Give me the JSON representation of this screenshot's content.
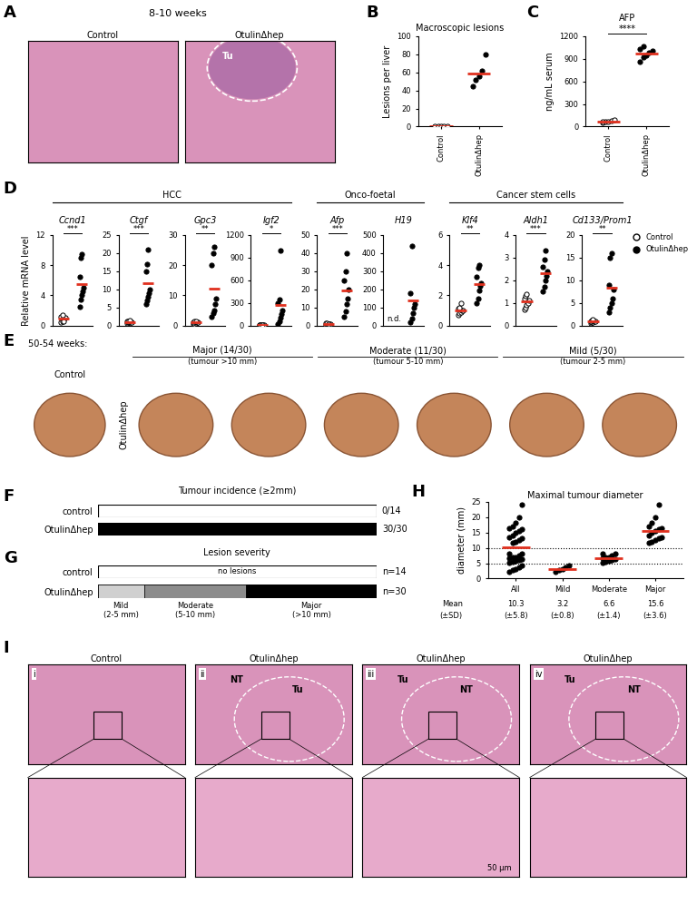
{
  "chart_data": [
    {
      "panel": "B",
      "type": "scatter",
      "title": "Macroscopic lesions",
      "y_label": "Lesions per liver",
      "categories": [
        "Control",
        "OtulinΔhep"
      ],
      "colors": [
        "#ffffff",
        "#000000"
      ],
      "values": [
        [
          0,
          0,
          0,
          0,
          0
        ],
        [
          45,
          52,
          56,
          62,
          80
        ]
      ],
      "means": [
        0,
        59
      ],
      "ylim": [
        0,
        100
      ],
      "yticks": [
        0,
        20,
        40,
        60,
        80,
        100
      ]
    },
    {
      "panel": "C",
      "type": "scatter",
      "title": "AFP",
      "y_label": "ng/mL serum",
      "categories": [
        "Control",
        "OtulinΔhep"
      ],
      "colors": [
        "#ffffff",
        "#000000"
      ],
      "values": [
        [
          50,
          60,
          70,
          80,
          90,
          60
        ],
        [
          860,
          920,
          950,
          980,
          1000,
          1030,
          1060
        ]
      ],
      "means": [
        68,
        971
      ],
      "significance": "****",
      "ylim": [
        0,
        1200
      ],
      "yticks": [
        0,
        300,
        600,
        900,
        1200
      ]
    },
    {
      "panel": "D",
      "type": "scatter",
      "group": "HCC",
      "title": "Ccnd1",
      "y_label": "Relative mRNA level",
      "significance": "***",
      "ylim": [
        0,
        12
      ],
      "yticks": [
        0,
        4,
        8,
        12
      ],
      "tick_labels": "y",
      "series": [
        {
          "name": "Control",
          "color": "#ffffff",
          "values": [
            0.4,
            0.6,
            0.8,
            1.0,
            1.0,
            1.2,
            1.4,
            0.5
          ],
          "mean": 0.9
        },
        {
          "name": "OtulinΔhep",
          "color": "#000000",
          "values": [
            2.5,
            3.5,
            4,
            4.5,
            5,
            6.5,
            9,
            9.5
          ],
          "mean": 5.5
        }
      ]
    },
    {
      "panel": "D",
      "type": "scatter",
      "group": "HCC",
      "title": "Ctgf",
      "significance": "***",
      "ylim": [
        0,
        25
      ],
      "yticks": [
        0,
        5,
        10,
        15,
        20,
        25
      ],
      "tick_labels": "y",
      "series": [
        {
          "name": "Control",
          "color": "#ffffff",
          "values": [
            0.7,
            0.8,
            0.9,
            1,
            1,
            1.1,
            1.2,
            1.3
          ],
          "mean": 1
        },
        {
          "name": "OtulinΔhep",
          "color": "#000000",
          "values": [
            6,
            7,
            8,
            9,
            10,
            15,
            17,
            21
          ],
          "mean": 11.6
        }
      ]
    },
    {
      "panel": "D",
      "type": "scatter",
      "group": "HCC",
      "title": "Gpc3",
      "significance": "**",
      "ylim": [
        0,
        30
      ],
      "yticks": [
        0,
        10,
        20,
        30
      ],
      "tick_labels": "y",
      "series": [
        {
          "name": "Control",
          "color": "#ffffff",
          "values": [
            0.5,
            0.5,
            0.8,
            1,
            1,
            1.2,
            1.5,
            1.5
          ],
          "mean": 1
        },
        {
          "name": "OtulinΔhep",
          "color": "#000000",
          "values": [
            3,
            4,
            5,
            7,
            9,
            20,
            24,
            26
          ],
          "mean": 12.3
        }
      ]
    },
    {
      "panel": "D",
      "type": "scatter",
      "group": "HCC",
      "title": "Igf2",
      "significance": "*",
      "ylim": [
        0,
        1200
      ],
      "yticks": [
        0,
        300,
        600,
        900,
        1200
      ],
      "tick_labels": "y",
      "series": [
        {
          "name": "Control",
          "color": "#ffffff",
          "values": [
            1,
            1,
            1,
            1,
            1,
            1,
            1,
            1
          ],
          "mean": 1
        },
        {
          "name": "OtulinΔhep",
          "color": "#000000",
          "values": [
            20,
            50,
            100,
            150,
            200,
            300,
            350,
            1000
          ],
          "mean": 271
        }
      ]
    },
    {
      "panel": "D",
      "type": "scatter",
      "group": "Onco-foetal",
      "title": "Afp",
      "significance": "***",
      "ylim": [
        0,
        50
      ],
      "yticks": [
        0,
        10,
        20,
        30,
        40,
        50
      ],
      "tick_labels": "y",
      "series": [
        {
          "name": "Control",
          "color": "#ffffff",
          "values": [
            0.5,
            0.8,
            1,
            1,
            1,
            1.2,
            1.5,
            1
          ],
          "mean": 1
        },
        {
          "name": "OtulinΔhep",
          "color": "#000000",
          "values": [
            5,
            8,
            12,
            15,
            20,
            25,
            30,
            40
          ],
          "mean": 19.4
        }
      ]
    },
    {
      "panel": "D",
      "type": "scatter",
      "group": "Onco-foetal",
      "title": "H19",
      "ylim": [
        0,
        500
      ],
      "yticks": [
        0,
        100,
        200,
        300,
        400,
        500
      ],
      "tick_labels": "y",
      "series": [
        {
          "name": "Control",
          "color": "#ffffff",
          "values": [],
          "label": "n.d."
        },
        {
          "name": "OtulinΔhep",
          "color": "#000000",
          "values": [
            20,
            40,
            70,
            100,
            120,
            180,
            440
          ],
          "mean": 138.6
        }
      ]
    },
    {
      "panel": "D",
      "type": "scatter",
      "group": "Cancer stem cells",
      "title": "Klf4",
      "significance": "**",
      "ylim": [
        0,
        6
      ],
      "yticks": [
        0,
        2,
        4,
        6
      ],
      "tick_labels": "y",
      "series": [
        {
          "name": "Control",
          "color": "#ffffff",
          "values": [
            0.7,
            0.8,
            0.9,
            1,
            1,
            1.1,
            1.2,
            1.5
          ],
          "mean": 1.0
        },
        {
          "name": "OtulinΔhep",
          "color": "#000000",
          "values": [
            1.5,
            1.8,
            2.3,
            2.6,
            2.8,
            3.2,
            3.8,
            4.0
          ],
          "mean": 2.75
        }
      ]
    },
    {
      "panel": "D",
      "type": "scatter",
      "group": "Cancer stem cells",
      "title": "Aldh1",
      "significance": "***",
      "ylim": [
        0,
        4
      ],
      "yticks": [
        0,
        1,
        2,
        3,
        4
      ],
      "tick_labels": "y",
      "series": [
        {
          "name": "Control",
          "color": "#ffffff",
          "values": [
            0.7,
            0.8,
            0.9,
            1,
            1.1,
            1.2,
            1.3,
            1.4
          ],
          "mean": 1.05
        },
        {
          "name": "OtulinΔhep",
          "color": "#000000",
          "values": [
            1.5,
            1.7,
            2,
            2.2,
            2.4,
            2.6,
            2.9,
            3.3
          ],
          "mean": 2.3
        }
      ]
    },
    {
      "panel": "D",
      "type": "scatter",
      "group": "Cancer stem cells",
      "title": "Cd133/Prom1",
      "significance": "**",
      "ylim": [
        0,
        20
      ],
      "yticks": [
        0,
        5,
        10,
        15,
        20
      ],
      "tick_labels": "y",
      "legend": "right",
      "series": [
        {
          "name": "Control",
          "color": "#ffffff",
          "values": [
            0.5,
            0.7,
            0.8,
            1,
            1,
            1,
            1.2,
            1.3
          ],
          "mean": 0.9
        },
        {
          "name": "OtulinΔhep",
          "color": "#000000",
          "values": [
            3,
            4,
            5,
            6,
            8,
            9,
            15,
            16
          ],
          "mean": 8.25
        }
      ]
    },
    {
      "panel": "F",
      "type": "bar",
      "orientation": "horizontal",
      "title": "Tumour incidence (≥2mm)",
      "categories": [
        "control",
        "OtulinΔhep"
      ],
      "values": [
        0,
        30
      ],
      "totals": [
        14,
        30
      ],
      "value_labels": [
        "0/14",
        "30/30"
      ],
      "color": "#000000",
      "tick_labels": "y"
    },
    {
      "panel": "G",
      "type": "bar",
      "orientation": "horizontal",
      "stacked": true,
      "title": "Lesion severity",
      "categories": [
        "control",
        "OtulinΔhep"
      ],
      "totals": [
        14,
        30
      ],
      "total_labels": [
        "n=14",
        "n=30"
      ],
      "empty_label": "no lesions",
      "tick_labels": "y",
      "series": [
        {
          "name": "Mild",
          "sublabel": "(2-5 mm)",
          "color": "#d0d0d0",
          "values": [
            0,
            5
          ]
        },
        {
          "name": "Moderate",
          "sublabel": "(5-10 mm)",
          "color": "#8c8c8c",
          "values": [
            0,
            11
          ]
        },
        {
          "name": "Major",
          "sublabel": "(>10 mm)",
          "color": "#000000",
          "values": [
            0,
            14
          ]
        }
      ]
    },
    {
      "panel": "H",
      "type": "scatter",
      "title": "Maximal tumour diameter",
      "y_label": "diameter (mm)",
      "categories": [
        "All",
        "Mild",
        "Moderate",
        "Major"
      ],
      "color": "#000000",
      "values": [
        [
          2.2,
          2.8,
          3.2,
          3.6,
          4.2,
          5.2,
          5.5,
          5.8,
          6.0,
          6.3,
          6.6,
          6.8,
          7.0,
          7.4,
          8.0,
          8.0,
          11.5,
          12,
          12.5,
          13,
          13.5,
          14,
          15,
          15.5,
          16,
          16.5,
          17,
          18,
          20,
          24
        ],
        [
          2.2,
          2.8,
          3.2,
          3.6,
          4.2
        ],
        [
          5.2,
          5.5,
          5.8,
          6.0,
          6.3,
          6.6,
          6.8,
          7.0,
          7.4,
          8.0,
          8.0
        ],
        [
          11.5,
          12,
          12.5,
          13,
          13.5,
          14,
          15,
          15.5,
          16,
          16.5,
          17,
          18,
          20,
          24
        ]
      ],
      "means": [
        10.3,
        3.2,
        6.6,
        15.6
      ],
      "mean_labels": [
        "10.3",
        "3.2",
        "6.6",
        "15.6"
      ],
      "sd_labels": [
        "(±5.8)",
        "(±0.8)",
        "(±1.4)",
        "(±3.6)"
      ],
      "row_labels": [
        "Mean",
        "(±SD)"
      ],
      "reference_lines": [
        5,
        10
      ],
      "ylim": [
        0,
        25
      ],
      "yticks": [
        0,
        5,
        10,
        15,
        20,
        25
      ]
    }
  ],
  "images": [
    {
      "panel": "A",
      "header": "8-10 weeks",
      "images": [
        {
          "title": "Control",
          "labels": []
        },
        {
          "title": "OtulinΔhep",
          "labels": [
            "Tu"
          ]
        }
      ]
    },
    {
      "panel": "E",
      "header": "50-54 weeks:",
      "control_title": "Control",
      "row_label": "OtulinΔhep",
      "groups": [
        {
          "title": "Major (14/30)",
          "subtitle": "(tumour >10 mm)",
          "photos": 2
        },
        {
          "title": "Moderate (11/30)",
          "subtitle": "(tumour 5-10 mm)",
          "photos": 2
        },
        {
          "title": "Mild (5/30)",
          "subtitle": "(tumour 2-5 mm)",
          "photos": 2
        }
      ]
    },
    {
      "panel": "I",
      "scale_label": "50 μm",
      "images": [
        {
          "numeral": "i",
          "title": "Control",
          "labels": []
        },
        {
          "numeral": "ii",
          "title": "OtulinΔhep",
          "labels": [
            "NT",
            "Tu"
          ]
        },
        {
          "numeral": "iii",
          "title": "OtulinΔhep",
          "labels": [
            "Tu",
            "NT"
          ]
        },
        {
          "numeral": "iv",
          "title": "OtulinΔhep",
          "labels": [
            "Tu",
            "NT"
          ]
        }
      ]
    }
  ]
}
